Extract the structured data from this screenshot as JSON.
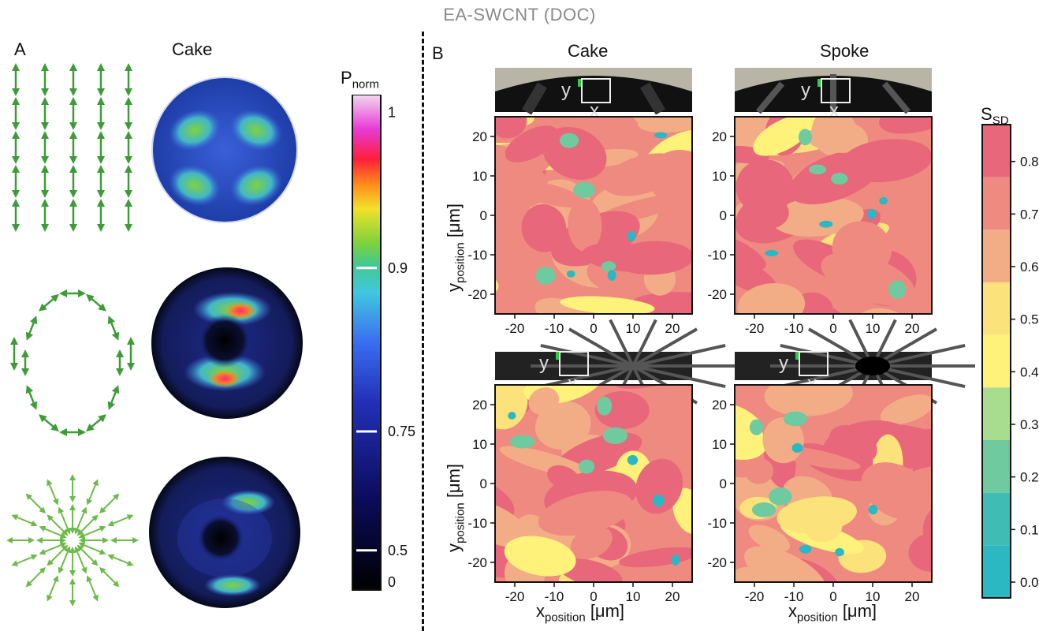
{
  "figure": {
    "title": "EA-SWCNT  (DOC)"
  },
  "panel_a": {
    "label": "A",
    "column_title": "Cake",
    "colorbar": {
      "title_main": "P",
      "title_sub": "norm",
      "tick_labels": [
        "1",
        "0.9",
        "0.75",
        "0.5",
        "0"
      ],
      "tick_values": [
        1,
        0.9,
        0.75,
        0.5,
        0
      ]
    },
    "vector_fields": [
      "vertical-polarization",
      "azimuthal-polarization",
      "radial-polarization"
    ],
    "images": [
      "cake-linear",
      "cake-azimuthal",
      "cake-radial"
    ]
  },
  "panel_b": {
    "label": "B",
    "col_titles": [
      "Cake",
      "Spoke"
    ],
    "inset_axis_y": "y",
    "inset_axis_x": "x",
    "y_axis_main": "y",
    "y_axis_sub": "position",
    "y_axis_unit": " [μm]",
    "x_axis_main": "x",
    "x_axis_sub": "position",
    "x_axis_unit": " [μm]",
    "x_ticks": [
      "-20",
      "-10",
      "0",
      "10",
      "20"
    ],
    "y_ticks": [
      "20",
      "10",
      "0",
      "-10",
      "-20"
    ],
    "colorbar": {
      "title_main": "S",
      "title_sub": "SD",
      "tick_labels": [
        "0.8",
        "0.7",
        "0.6",
        "0.5",
        "0.4",
        "0.3",
        "0.2",
        "0.1",
        "0.0"
      ],
      "levels": [
        {
          "color": "#e8677a"
        },
        {
          "color": "#ee8a80"
        },
        {
          "color": "#f3ad86"
        },
        {
          "color": "#fbe27a"
        },
        {
          "color": "#fff27a"
        },
        {
          "color": "#a8dc8e"
        },
        {
          "color": "#6fcaa0"
        },
        {
          "color": "#3fbcb3"
        },
        {
          "color": "#2bb8c2"
        }
      ]
    }
  }
}
